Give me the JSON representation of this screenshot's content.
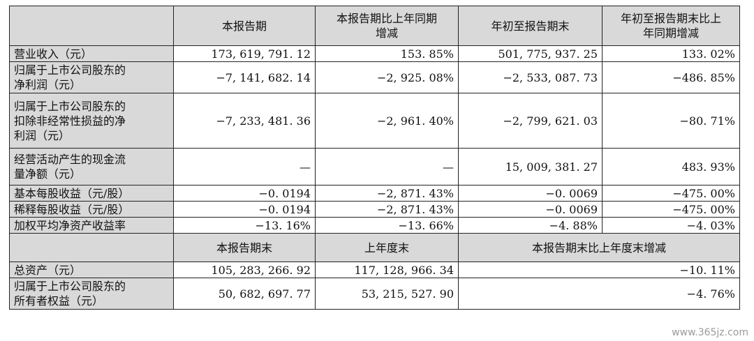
{
  "table": {
    "headers": [
      "",
      "本报告期",
      "本报告期比上年同期增减",
      "年初至报告期末",
      "年初至报告期末比上年同期增减"
    ],
    "header_lines": {
      "h1": "本报告期",
      "h2a": "本报告期比上年同期",
      "h2b": "增减",
      "h3": "年初至报告期末",
      "h4a": "年初至报告期末比上",
      "h4b": "年同期增减"
    },
    "rows": [
      {
        "label": [
          "营业收入（元）"
        ],
        "values": [
          "173, 619, 791. 12",
          "153. 85%",
          "501, 775, 937. 25",
          "133. 02%"
        ]
      },
      {
        "label": [
          "归属于上市公司股东的",
          "净利润（元）"
        ],
        "values": [
          "−7, 141, 682. 14",
          "−2, 925. 08%",
          "−2, 533, 087. 73",
          "−486. 85%"
        ]
      },
      {
        "label": [
          "归属于上市公司股东的",
          "扣除非经常性损益的净",
          "利润（元）"
        ],
        "values": [
          "−7, 233, 481. 36",
          "−2, 961. 40%",
          "−2, 799, 621. 03",
          "−80. 71%"
        ]
      },
      {
        "label": [
          "经营活动产生的现金流",
          "量净额（元）"
        ],
        "values": [
          "—",
          "—",
          "15, 009, 381. 27",
          "483. 93%"
        ]
      },
      {
        "label": [
          "基本每股收益（元/股）"
        ],
        "values": [
          "−0. 0194",
          "−2, 871. 43%",
          "−0. 0069",
          "−475. 00%"
        ]
      },
      {
        "label": [
          "稀释每股收益（元/股）"
        ],
        "values": [
          "−0. 0194",
          "−2, 871. 43%",
          "−0. 0069",
          "−475. 00%"
        ]
      },
      {
        "label": [
          "加权平均净资产收益率"
        ],
        "values": [
          "−13. 16%",
          "−13. 66%",
          "−4. 88%",
          "−4. 03%"
        ]
      }
    ],
    "headers2": [
      "",
      "本报告期末",
      "上年度末",
      "本报告期末比上年度末增减"
    ],
    "rows2": [
      {
        "label": [
          "总资产（元）"
        ],
        "values": [
          "105, 283, 266. 92",
          "117, 128, 966. 34",
          "−10. 11%"
        ]
      },
      {
        "label": [
          "归属于上市公司股东的",
          "所有者权益（元）"
        ],
        "values": [
          "50, 682, 697. 77",
          "53, 215, 527. 90",
          "−4. 76%"
        ]
      }
    ]
  },
  "watermark": "www.365jz.com"
}
